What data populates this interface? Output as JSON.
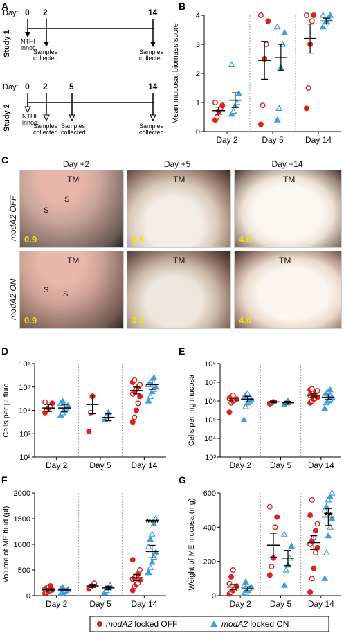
{
  "panels": {
    "A": "A",
    "B": "B",
    "C": "C",
    "D": "D",
    "E": "E",
    "F": "F",
    "G": "G"
  },
  "timeline": {
    "day_label": "Day:",
    "study1_label": "Study 1",
    "study2_label": "Study 2",
    "study1_days": [
      "0",
      "2",
      "14"
    ],
    "study2_days": [
      "0",
      "2",
      "5",
      "14"
    ],
    "innoc_label": [
      "NTHI",
      "innoc."
    ],
    "samples_label": [
      "Samples",
      "collected"
    ]
  },
  "photos": {
    "columns": [
      "Day +2",
      "Day +5",
      "Day +14"
    ],
    "rows": [
      "modA2 OFF",
      "modA2 ON"
    ],
    "tm_label": "TM",
    "s_label": "S",
    "scores_off": [
      "0.9",
      "3.6",
      "4.0"
    ],
    "scores_on": [
      "0.9",
      "3.4",
      "4.0"
    ]
  },
  "legend": {
    "off_label_italic": "modA2",
    "off_label_rest": " locked OFF",
    "on_label_italic": "modA2",
    "on_label_rest": " locked ON"
  },
  "colors": {
    "off": "#e0201b",
    "on": "#3e9ee0",
    "dotted": "#999999"
  },
  "chart_data": [
    {
      "panel": "B",
      "type": "scatter",
      "categories": [
        "Day 2",
        "Day 5",
        "Day 14"
      ],
      "ylabel": "Mean mucosal biomass score",
      "ylim": [
        0,
        4
      ],
      "yticks": [
        0,
        1,
        2,
        3,
        4
      ],
      "series": [
        {
          "name": "modA2 locked OFF",
          "points": [
            [
              0.4,
              0.5,
              0.7,
              0.8,
              0.9,
              1.0
            ],
            [
              0.25,
              0.9,
              2.5,
              3.0,
              3.8,
              4.0
            ],
            [
              0.8,
              1.5,
              3.0,
              3.8,
              4.0,
              4.0
            ]
          ],
          "mean": [
            0.72,
            2.45,
            3.2
          ],
          "sem": [
            0.12,
            0.65,
            0.5
          ]
        },
        {
          "name": "modA2 locked ON",
          "points": [
            [
              0.6,
              0.7,
              0.9,
              1.0,
              1.3,
              2.3
            ],
            [
              0.4,
              0.8,
              2.2,
              3.0,
              3.4,
              3.6
            ],
            [
              3.6,
              3.7,
              3.8,
              3.9,
              4.0,
              4.0
            ]
          ],
          "mean": [
            1.08,
            2.55,
            3.8
          ],
          "sem": [
            0.25,
            0.45,
            0.1
          ]
        }
      ]
    },
    {
      "panel": "D",
      "type": "scatter",
      "log": true,
      "categories": [
        "Day 2",
        "Day 5",
        "Day 14"
      ],
      "ylabel": "Cells per µl fluid",
      "yticks": [
        "10²",
        "10³",
        "10⁴",
        "10⁵",
        "10⁶"
      ],
      "ylim_log": [
        2,
        6
      ],
      "series": [
        {
          "name": "modA2 locked OFF",
          "points": [
            [
              3.9,
              4.0,
              4.1,
              4.15,
              4.3,
              4.35
            ],
            [
              3.1,
              3.9,
              4.6
            ],
            [
              3.5,
              3.7,
              4.0,
              4.3,
              4.6,
              4.7,
              4.8,
              4.9,
              5.0,
              5.1,
              5.2,
              5.3
            ]
          ],
          "mean": [
            4.1,
            4.25,
            4.85
          ],
          "sem": [
            0.15,
            0.4,
            0.15
          ]
        },
        {
          "name": "modA2 locked ON",
          "points": [
            [
              3.8,
              3.9,
              4.0,
              4.1,
              4.2,
              4.3,
              4.4
            ],
            [
              3.6,
              3.75,
              3.9
            ],
            [
              4.4,
              4.6,
              4.8,
              4.9,
              5.0,
              5.1,
              5.2,
              5.3,
              5.4
            ]
          ],
          "mean": [
            4.1,
            3.7,
            5.1
          ],
          "sem": [
            0.15,
            0.15,
            0.2
          ]
        }
      ]
    },
    {
      "panel": "E",
      "type": "scatter",
      "log": true,
      "categories": [
        "Day 2",
        "Day 5",
        "Day 14"
      ],
      "ylabel": "Cells per mg mucosa",
      "yticks": [
        "10³",
        "10⁴",
        "10⁵",
        "10⁶",
        "10⁷",
        "10⁸"
      ],
      "ylim_log": [
        3,
        8
      ],
      "series": [
        {
          "name": "modA2 locked OFF",
          "points": [
            [
              5.4,
              5.9,
              6.0,
              6.05,
              6.1,
              6.15,
              6.2,
              6.3
            ],
            [
              5.85,
              5.9,
              5.95
            ],
            [
              5.9,
              6.0,
              6.1,
              6.15,
              6.2,
              6.3,
              6.4,
              6.45,
              6.5,
              6.55,
              6.6,
              6.65
            ]
          ],
          "mean": [
            6.05,
            5.95,
            6.3
          ],
          "sem": [
            0.1,
            0.05,
            0.08
          ]
        },
        {
          "name": "modA2 locked ON",
          "points": [
            [
              5.0,
              5.7,
              5.9,
              6.0,
              6.1,
              6.2,
              6.3,
              6.4
            ],
            [
              5.8,
              5.9,
              6.0
            ],
            [
              5.6,
              5.9,
              6.0,
              6.1,
              6.2,
              6.3,
              6.4,
              6.5,
              6.6
            ]
          ],
          "mean": [
            6.1,
            5.9,
            6.2
          ],
          "sem": [
            0.15,
            0.08,
            0.12
          ]
        }
      ]
    },
    {
      "panel": "F",
      "type": "scatter",
      "categories": [
        "Day 2",
        "Day 5",
        "Day 14"
      ],
      "ylabel": "Volume of ME fluid (µl)",
      "ylim": [
        0,
        2000
      ],
      "yticks": [
        0,
        500,
        1000,
        1500,
        2000
      ],
      "annotation": "***",
      "series": [
        {
          "name": "modA2 locked OFF",
          "points": [
            [
              40,
              60,
              80,
              100,
              110,
              130,
              150,
              170,
              190
            ],
            [
              130,
              170,
              200,
              240
            ],
            [
              100,
              180,
              220,
              250,
              300,
              320,
              350,
              380,
              420,
              500,
              700
            ]
          ],
          "mean": [
            110,
            190,
            350
          ],
          "sem": [
            25,
            30,
            60
          ]
        },
        {
          "name": "modA2 locked ON",
          "points": [
            [
              40,
              60,
              80,
              100,
              120,
              130,
              160
            ],
            [
              60,
              100,
              150,
              200
            ],
            [
              450,
              550,
              650,
              750,
              850,
              950,
              1100,
              1200,
              1400,
              1500
            ]
          ],
          "mean": [
            110,
            150,
            860
          ],
          "sem": [
            20,
            35,
            120
          ]
        }
      ]
    },
    {
      "panel": "G",
      "type": "scatter",
      "categories": [
        "Day 2",
        "Day 5",
        "Day 14"
      ],
      "ylabel": "Weight of ME mucosa (mg)",
      "ylim": [
        0,
        600
      ],
      "yticks": [
        0,
        200,
        400,
        600
      ],
      "annotation": "**",
      "series": [
        {
          "name": "modA2 locked OFF",
          "points": [
            [
              10,
              20,
              30,
              40,
              55,
              70,
              110,
              150
            ],
            [
              120,
              170,
              220,
              400,
              460,
              520
            ],
            [
              20,
              100,
              160,
              250,
              280,
              300,
              320,
              340,
              380,
              420,
              470,
              560
            ]
          ],
          "mean": [
            50,
            295,
            310
          ],
          "sem": [
            15,
            70,
            40
          ]
        },
        {
          "name": "modA2 locked ON",
          "points": [
            [
              10,
              20,
              30,
              40,
              50,
              60,
              80
            ],
            [
              60,
              150,
              180,
              220,
              290,
              360
            ],
            [
              100,
              250,
              350,
              400,
              450,
              500,
              520,
              560,
              580,
              600
            ]
          ],
          "mean": [
            40,
            220,
            460
          ],
          "sem": [
            12,
            45,
            50
          ]
        }
      ]
    }
  ]
}
